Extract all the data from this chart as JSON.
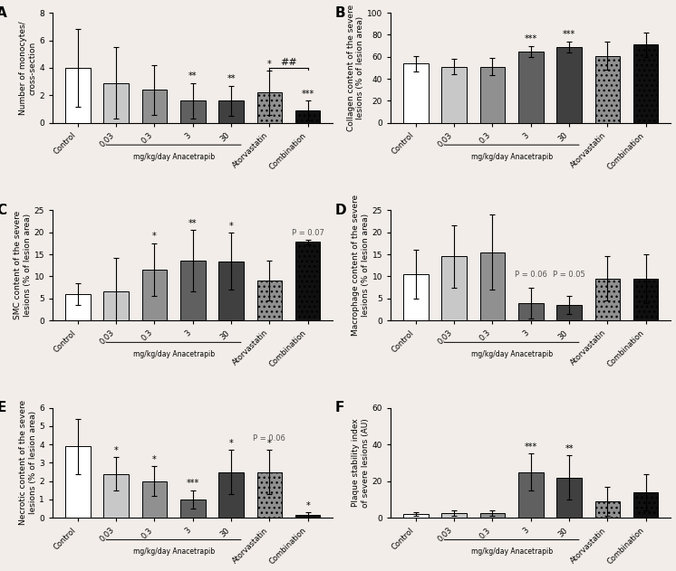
{
  "panels": {
    "A": {
      "title": "A",
      "ylabel": "Number of monocytes/\ncross-section",
      "ylim": [
        0,
        8
      ],
      "yticks": [
        0,
        2,
        4,
        6,
        8
      ],
      "bars": [
        4.0,
        2.9,
        2.4,
        1.6,
        1.6,
        2.2,
        0.9
      ],
      "errors": [
        2.8,
        2.6,
        1.8,
        1.3,
        1.1,
        1.6,
        0.7
      ],
      "sig_stars": [
        "",
        "",
        "",
        "**",
        "**",
        "*",
        "***"
      ],
      "bracket": {
        "from": 5,
        "to": 6,
        "label": "##",
        "y": 4.0
      }
    },
    "B": {
      "title": "B",
      "ylabel": "Collagen content of the severe\nlesions (% of lesion area)",
      "ylim": [
        0,
        100
      ],
      "yticks": [
        0,
        20,
        40,
        60,
        80,
        100
      ],
      "bars": [
        54,
        51,
        51,
        65,
        69,
        61,
        71
      ],
      "errors": [
        7,
        7,
        8,
        5,
        5,
        13,
        11
      ],
      "sig_stars": [
        "",
        "",
        "",
        "***",
        "***",
        "",
        ""
      ],
      "bracket": null
    },
    "C": {
      "title": "C",
      "ylabel": "SMC content of the severe\nlesions (% of lesion area)",
      "ylim": [
        0,
        25
      ],
      "yticks": [
        0,
        5,
        10,
        15,
        20,
        25
      ],
      "bars": [
        6.0,
        6.6,
        11.5,
        13.5,
        13.4,
        9.0,
        17.8
      ],
      "errors": [
        2.5,
        7.5,
        6.0,
        7.0,
        6.5,
        4.5,
        0.5
      ],
      "sig_stars": [
        "",
        "",
        "*",
        "**",
        "*",
        "",
        ""
      ],
      "p_label": {
        "bar_idx": 6,
        "label": "P = 0.07",
        "y": 19.0
      },
      "bracket": null
    },
    "D": {
      "title": "D",
      "ylabel": "Macrophage content of the severe\nlesions (% of lesion area)",
      "ylim": [
        0,
        25
      ],
      "yticks": [
        0,
        5,
        10,
        15,
        20,
        25
      ],
      "bars": [
        10.5,
        14.5,
        15.5,
        4.0,
        3.5,
        9.5,
        9.5
      ],
      "errors": [
        5.5,
        7.0,
        8.5,
        3.5,
        2.0,
        5.0,
        5.5
      ],
      "sig_stars": [
        "",
        "",
        "",
        "",
        "",
        "",
        ""
      ],
      "p_labels": [
        {
          "bar_idx": 3,
          "label": "P = 0.06",
          "y": 9.5
        },
        {
          "bar_idx": 4,
          "label": "P = 0.05",
          "y": 9.5
        }
      ],
      "bracket": null
    },
    "E": {
      "title": "E",
      "ylabel": "Necrotic content of the severe\nlesions (% of lesion area)",
      "ylim": [
        0,
        6
      ],
      "yticks": [
        0,
        1,
        2,
        3,
        4,
        5,
        6
      ],
      "bars": [
        3.9,
        2.4,
        2.0,
        1.0,
        2.5,
        2.5,
        0.15
      ],
      "errors": [
        1.5,
        0.9,
        0.8,
        0.5,
        1.2,
        1.2,
        0.15
      ],
      "sig_stars": [
        "",
        "*",
        "*",
        "***",
        "*",
        "*",
        "*"
      ],
      "p_label": {
        "bar_idx": 5,
        "label": "P = 0.06",
        "y": 4.1
      },
      "bracket": null
    },
    "F": {
      "title": "F",
      "ylabel": "Plaque stability index\nof severe lesions (AU)",
      "ylim": [
        0,
        60
      ],
      "yticks": [
        0,
        20,
        40,
        60
      ],
      "bars": [
        2.0,
        2.5,
        2.5,
        25.0,
        22.0,
        9.0,
        14.0
      ],
      "errors": [
        1.0,
        1.5,
        1.5,
        10.0,
        12.0,
        8.0,
        10.0
      ],
      "sig_stars": [
        "",
        "",
        "",
        "***",
        "**",
        "",
        ""
      ],
      "bracket": null
    }
  },
  "bar_colors": [
    "#ffffff",
    "#c8c8c8",
    "#909090",
    "#606060",
    "#404040",
    "#909090",
    "#101010"
  ],
  "hatch_list": [
    "",
    "",
    "",
    "",
    "",
    "...",
    "..."
  ],
  "categories": [
    "Control",
    "0.03",
    "0.3",
    "3",
    "30",
    "Atorvastatin",
    "Combination"
  ],
  "bg_color": "#f2ede8"
}
